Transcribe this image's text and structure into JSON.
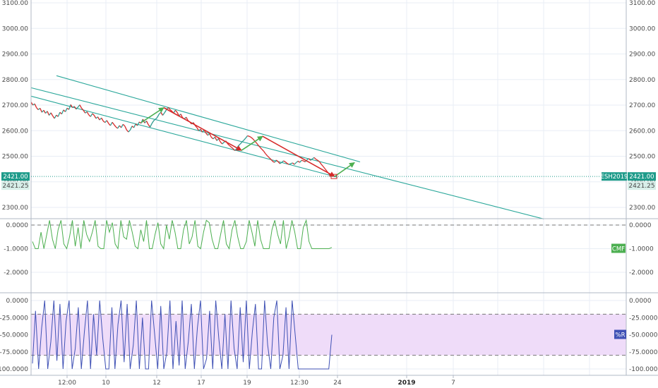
{
  "chart_data": [
    {
      "type": "line",
      "panel": "price",
      "ylim": [
        2250,
        3100
      ],
      "y_ticks": [
        2300,
        2400,
        2500,
        2600,
        2700,
        2800,
        2900,
        3000,
        3100
      ],
      "y_tick_labels": [
        "2300.00",
        "2400.00",
        "2500.00",
        "2600.00",
        "2700.00",
        "2800.00",
        "2900.00",
        "3000.00",
        "3100.00"
      ],
      "x_tick_labels": [
        "12:00",
        "10",
        "12",
        "17",
        "19",
        "12:30",
        "24",
        "2019",
        "7"
      ],
      "grid": true,
      "series": [
        {
          "values": [
            2712,
            2700,
            2705,
            2690,
            2682,
            2688,
            2672,
            2680,
            2668,
            2676,
            2660,
            2670,
            2658,
            2648,
            2661,
            2655,
            2672,
            2665,
            2681,
            2674,
            2688,
            2683,
            2702,
            2690,
            2695,
            2684,
            2692,
            2701,
            2688,
            2680,
            2669,
            2674,
            2662,
            2655,
            2667,
            2660,
            2648,
            2654,
            2642,
            2650,
            2638,
            2632,
            2640,
            2628,
            2620,
            2633,
            2624,
            2615,
            2609,
            2620,
            2612,
            2625,
            2618,
            2603,
            2595,
            2603,
            2618,
            2612,
            2626,
            2620,
            2634,
            2629,
            2645,
            2630,
            2638,
            2624,
            2614,
            2628,
            2639,
            2645,
            2652,
            2665,
            2672,
            2660,
            2670,
            2681,
            2691,
            2683,
            2677,
            2669,
            2680,
            2672,
            2658,
            2665,
            2651,
            2646,
            2653,
            2640,
            2634,
            2626,
            2632,
            2620,
            2612,
            2600,
            2606,
            2594,
            2603,
            2590,
            2582,
            2588,
            2574,
            2568,
            2575,
            2561,
            2569,
            2556,
            2548,
            2555,
            2560,
            2549,
            2542,
            2536,
            2530,
            2522,
            2530,
            2541,
            2548,
            2556,
            2563,
            2571,
            2580,
            2578,
            2574,
            2568,
            2560,
            2552,
            2543,
            2535,
            2527,
            2520,
            2510,
            2502,
            2495,
            2488,
            2480,
            2476,
            2485,
            2479,
            2471,
            2476,
            2482,
            2478,
            2472,
            2468,
            2471,
            2474,
            2468,
            2475,
            2481,
            2476,
            2484,
            2482,
            2478,
            2486,
            2491,
            2484,
            2490,
            2495,
            2488,
            2484,
            2478,
            2468,
            2460,
            2451,
            2442,
            2433,
            2424
          ]
        }
      ]
    },
    {
      "type": "line",
      "panel": "cmf",
      "ylim": [
        -2.7,
        0.3
      ],
      "y_ticks": [
        0,
        -1,
        -2
      ],
      "y_tick_labels": [
        "0.0000",
        "-1.0000",
        "-2.0000"
      ],
      "grid": true,
      "series": [
        {
          "values": [
            -0.7,
            -1,
            -1,
            -0.3,
            -1,
            -0.4,
            0.2,
            -0.6,
            -1,
            -0.2,
            0.2,
            -0.8,
            -1,
            -0.5,
            0.2,
            -0.9,
            -0.1,
            -1,
            0.2,
            -0.4,
            -0.7,
            -0.3,
            0.2,
            -0.9,
            -1,
            -1,
            0.2,
            -0.3,
            0.1,
            -0.8,
            -1,
            0.2,
            -0.5,
            -0.6,
            0.2,
            -0.3,
            -0.9,
            -1,
            -0.2,
            -0.7,
            0.2,
            -1,
            -1,
            -0.4,
            0.1,
            -0.8,
            -1,
            0,
            -0.6,
            0.2,
            -0.3,
            -1,
            -1,
            -0.2,
            0.2,
            -0.8,
            -0.5,
            0.2,
            -0.9,
            -1,
            -0.3,
            0.2,
            0.1,
            -0.6,
            -1,
            -1,
            -0.4,
            0.2,
            -0.8,
            -1,
            -0.2,
            0.2,
            -0.5,
            -1,
            -1,
            -0.7,
            0.2,
            -0.3,
            -0.9,
            0.2,
            -0.6,
            -1,
            -1,
            -1,
            -0.2,
            0.2,
            -0.4,
            -0.8,
            0.2,
            -1,
            -0.5,
            0.2,
            -0.3,
            -1,
            -1,
            -0.1,
            0.2,
            -0.7,
            -1,
            -1,
            -1,
            -1,
            -1,
            -1,
            -1,
            -0.95
          ],
          "color": "#4caf50"
        }
      ]
    },
    {
      "type": "line",
      "panel": "williams_r",
      "ylim": [
        -105,
        5
      ],
      "y_ticks": [
        0,
        -25,
        -50,
        -75,
        -100
      ],
      "y_tick_labels": [
        "0.0000",
        "-25.0000",
        "-50.0000",
        "-75.0000",
        "-100.0000"
      ],
      "bands": [
        -20,
        -80
      ],
      "grid": true,
      "series": [
        {
          "values": [
            -92,
            -15,
            -100,
            -40,
            0,
            -100,
            -60,
            0,
            -88,
            -5,
            -100,
            -30,
            0,
            -100,
            -70,
            -10,
            -100,
            -45,
            0,
            -100,
            -20,
            -80,
            0,
            -55,
            -100,
            -100,
            -10,
            -100,
            -35,
            0,
            -90,
            -5,
            -100,
            -65,
            0,
            -100,
            -25,
            -100,
            -100,
            0,
            -50,
            -100,
            -8,
            -100,
            -75,
            0,
            -100,
            -30,
            -95,
            0,
            -100,
            -60,
            -5,
            -100,
            -40,
            0,
            -100,
            -85,
            -15,
            -100,
            0,
            -55,
            -100,
            -20,
            -100,
            0,
            -70,
            -100,
            -10,
            -90,
            0,
            -100,
            -45,
            -5,
            -100,
            -100,
            0,
            -65,
            -100,
            -25,
            0,
            -100,
            -80,
            -10,
            -100,
            0,
            -50,
            -100,
            -100,
            -100,
            -100,
            -100,
            -100,
            -100,
            -100,
            -100,
            -100,
            -100,
            -50
          ],
          "color": "#3f51b5"
        }
      ]
    }
  ],
  "price_labels": {
    "last_price": "2421.00",
    "secondary_price": "2421.25",
    "symbol": "ESH2019"
  },
  "indicator_labels": {
    "cmf": "CMF",
    "williams_r": "%R"
  },
  "colors": {
    "price_up": "#2e9b8f",
    "price_down": "#d62828",
    "arrow_up": "#4caf50",
    "arrow_down": "#d62828",
    "channel": "#2aa79a",
    "last_price_badge": "#1e9b8a",
    "cmf_line": "#4caf50",
    "wr_line": "#3f51b5",
    "wr_band": "#efdcf9",
    "grid": "#e8eef5"
  }
}
